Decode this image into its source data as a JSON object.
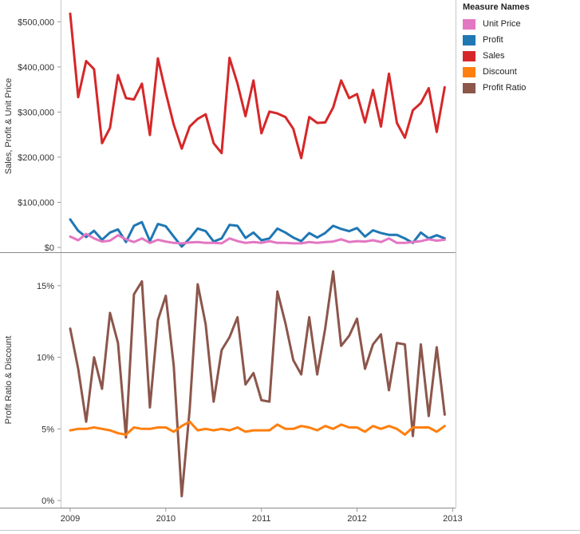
{
  "chart_data": [
    {
      "type": "line",
      "panel": "top",
      "ylabel": "Sales, Profit & Unit Price",
      "ylim": [
        0,
        520000
      ],
      "y_ticks": [
        0,
        100000,
        200000,
        300000,
        400000,
        500000
      ],
      "y_tick_labels": [
        "$0",
        "$100,000",
        "$200,000",
        "$300,000",
        "$400,000",
        "$500,000"
      ],
      "x_start": 2009.0,
      "x_step": 0.0833333,
      "series": [
        {
          "name": "Sales",
          "color": "#d62728",
          "values": [
            518000,
            333000,
            413000,
            395000,
            231000,
            265000,
            382000,
            331000,
            328000,
            363000,
            249000,
            419000,
            343000,
            272000,
            219000,
            268000,
            285000,
            295000,
            231000,
            209000,
            420000,
            363000,
            291000,
            370000,
            253000,
            301000,
            297000,
            289000,
            263000,
            198000,
            289000,
            276000,
            277000,
            310000,
            370000,
            331000,
            340000,
            277000,
            349000,
            268000,
            385000,
            276000,
            243000,
            304000,
            320000,
            353000,
            256000,
            355000
          ]
        },
        {
          "name": "Profit",
          "color": "#1f77b4",
          "values": [
            62000,
            37000,
            23000,
            37000,
            17000,
            33000,
            40000,
            12000,
            48000,
            56000,
            14000,
            52000,
            47000,
            24000,
            2000,
            20000,
            42000,
            36000,
            13000,
            20000,
            50000,
            48000,
            21000,
            33000,
            16000,
            20000,
            42000,
            33000,
            22000,
            14000,
            32000,
            22000,
            32000,
            48000,
            41000,
            36000,
            43000,
            24000,
            38000,
            32000,
            28000,
            28000,
            20000,
            10000,
            33000,
            20000,
            27000,
            20000
          ]
        },
        {
          "name": "Unit Price",
          "color": "#e377c2",
          "values": [
            24000,
            16000,
            30000,
            20000,
            13000,
            15000,
            27000,
            18000,
            12000,
            20000,
            10000,
            17000,
            13000,
            10000,
            9000,
            11000,
            12000,
            10000,
            10000,
            9000,
            20000,
            14000,
            10000,
            12000,
            10000,
            14000,
            10000,
            10000,
            9000,
            9000,
            12000,
            10000,
            12000,
            13000,
            18000,
            12000,
            14000,
            13000,
            16000,
            12000,
            20000,
            10000,
            10000,
            12000,
            14000,
            18000,
            15000,
            17000
          ]
        }
      ]
    },
    {
      "type": "line",
      "panel": "bottom",
      "ylabel": "Profit Ratio & Discount",
      "ylim": [
        0,
        0.165
      ],
      "y_ticks": [
        0,
        0.05,
        0.1,
        0.15
      ],
      "y_tick_labels": [
        "0%",
        "5%",
        "10%",
        "15%"
      ],
      "x_start": 2009.0,
      "x_step": 0.0833333,
      "xlim": [
        2008.9,
        2013.03
      ],
      "x_ticks": [
        2009,
        2010,
        2011,
        2012,
        2013
      ],
      "x_tick_labels": [
        "2009",
        "2010",
        "2011",
        "2012",
        "2013"
      ],
      "series": [
        {
          "name": "Profit Ratio",
          "color": "#8c564b",
          "values": [
            0.12,
            0.092,
            0.055,
            0.1,
            0.078,
            0.131,
            0.11,
            0.044,
            0.144,
            0.153,
            0.065,
            0.126,
            0.143,
            0.094,
            0.003,
            0.064,
            0.151,
            0.123,
            0.069,
            0.105,
            0.114,
            0.128,
            0.081,
            0.089,
            0.07,
            0.069,
            0.146,
            0.124,
            0.098,
            0.088,
            0.128,
            0.088,
            0.12,
            0.16,
            0.108,
            0.115,
            0.127,
            0.092,
            0.109,
            0.116,
            0.077,
            0.11,
            0.109,
            0.045,
            0.109,
            0.059,
            0.107,
            0.06
          ]
        },
        {
          "name": "Discount",
          "color": "#ff7f0e",
          "values": [
            0.049,
            0.05,
            0.05,
            0.051,
            0.05,
            0.049,
            0.047,
            0.046,
            0.051,
            0.05,
            0.05,
            0.051,
            0.051,
            0.048,
            0.052,
            0.055,
            0.049,
            0.05,
            0.049,
            0.05,
            0.049,
            0.051,
            0.048,
            0.049,
            0.049,
            0.049,
            0.053,
            0.05,
            0.05,
            0.052,
            0.051,
            0.049,
            0.052,
            0.05,
            0.053,
            0.051,
            0.051,
            0.048,
            0.052,
            0.05,
            0.052,
            0.05,
            0.046,
            0.051,
            0.051,
            0.051,
            0.048,
            0.052
          ]
        }
      ]
    }
  ],
  "legend": {
    "title": "Measure Names",
    "items": [
      {
        "label": "Unit Price",
        "color": "#e377c2"
      },
      {
        "label": "Profit",
        "color": "#1f77b4"
      },
      {
        "label": "Sales",
        "color": "#d62728"
      },
      {
        "label": "Discount",
        "color": "#ff7f0e"
      },
      {
        "label": "Profit Ratio",
        "color": "#8c564b"
      }
    ]
  }
}
